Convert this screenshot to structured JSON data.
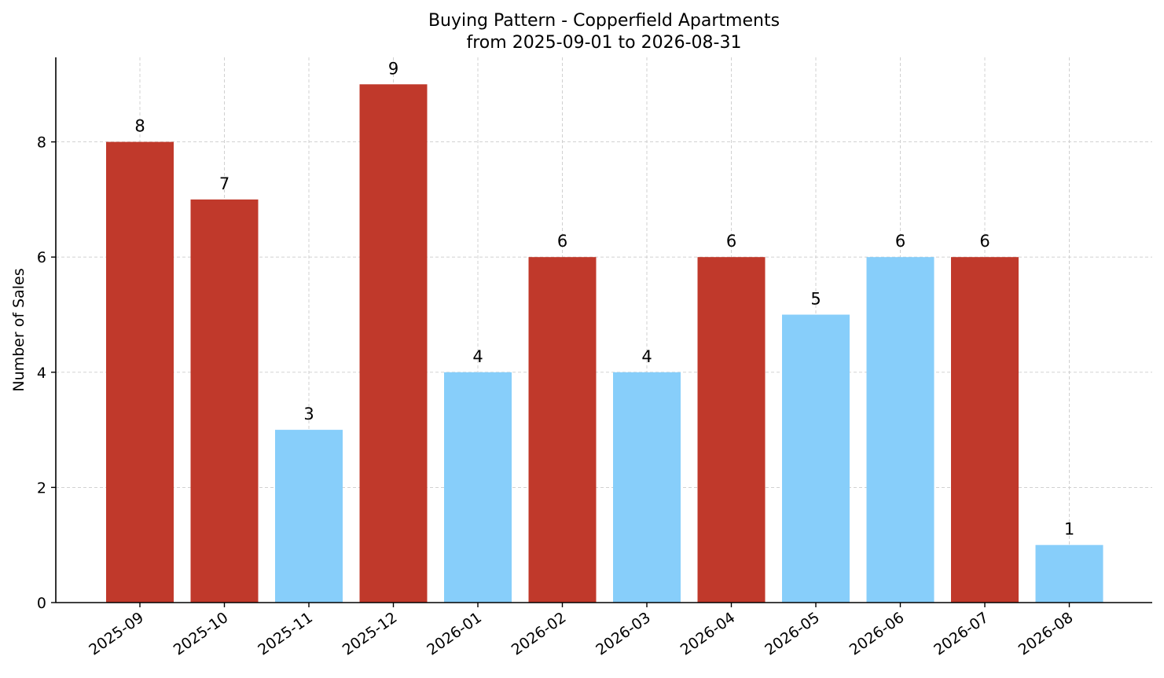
{
  "chart_data": {
    "type": "bar",
    "title": "Buying Pattern - Copperfield Apartments",
    "subtitle": "from 2025-09-01 to 2026-08-31",
    "xlabel": "",
    "ylabel": "Number of Sales",
    "categories": [
      "2025-09",
      "2025-10",
      "2025-11",
      "2025-12",
      "2026-01",
      "2026-02",
      "2026-03",
      "2026-04",
      "2026-05",
      "2026-06",
      "2026-07",
      "2026-08"
    ],
    "values": [
      8,
      7,
      3,
      9,
      4,
      6,
      4,
      6,
      5,
      6,
      6,
      1
    ],
    "bar_colors": [
      "#c0392b",
      "#c0392b",
      "#87cefa",
      "#c0392b",
      "#87cefa",
      "#c0392b",
      "#87cefa",
      "#c0392b",
      "#87cefa",
      "#87cefa",
      "#c0392b",
      "#87cefa"
    ],
    "ylim": [
      0,
      9.45
    ],
    "yticks": [
      0,
      2,
      4,
      6,
      8
    ],
    "grid": true,
    "data_labels": true
  }
}
